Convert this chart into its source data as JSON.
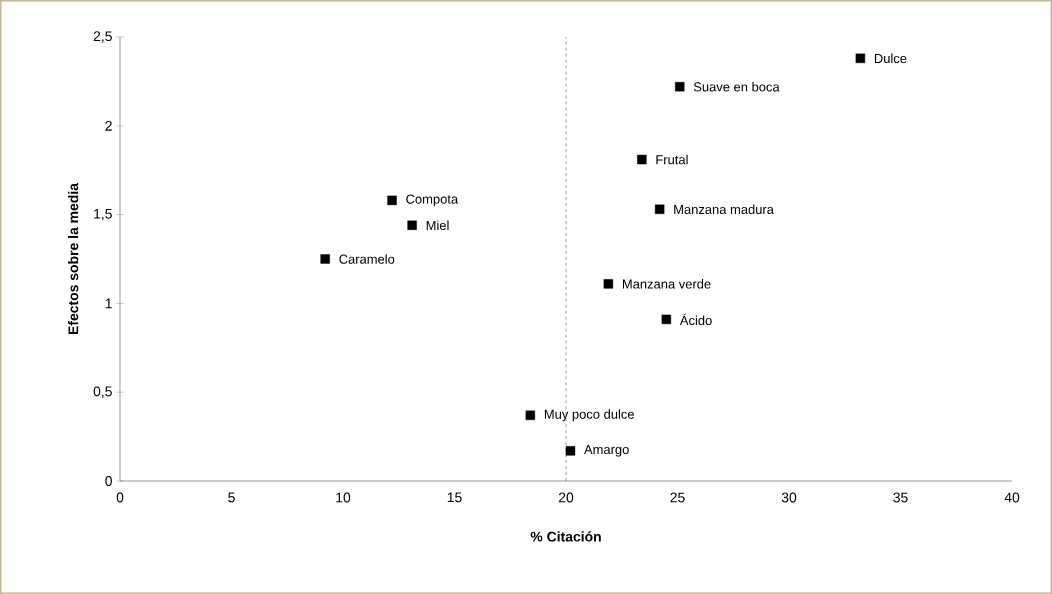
{
  "chart_data": {
    "type": "scatter",
    "xlabel": "% Citación",
    "ylabel": "Efectos sobre la media",
    "x": [
      33.2,
      25.1,
      23.4,
      24.2,
      12.2,
      13.1,
      9.2,
      21.9,
      24.5,
      18.4,
      20.2
    ],
    "values": [
      2.38,
      2.22,
      1.81,
      1.53,
      1.58,
      1.44,
      1.25,
      1.11,
      0.91,
      0.37,
      0.17
    ],
    "color": "#000000",
    "marker": "square",
    "annotations": [
      {
        "text": "Dulce",
        "x": 33.2,
        "y": 2.38
      },
      {
        "text": "Suave en boca",
        "x": 25.1,
        "y": 2.22
      },
      {
        "text": "Frutal",
        "x": 23.4,
        "y": 1.81
      },
      {
        "text": "Manzana madura",
        "x": 24.2,
        "y": 1.53
      },
      {
        "text": "Compota",
        "x": 12.2,
        "y": 1.58
      },
      {
        "text": "Miel",
        "x": 13.1,
        "y": 1.44
      },
      {
        "text": "Caramelo",
        "x": 9.2,
        "y": 1.25
      },
      {
        "text": "Manzana verde",
        "x": 21.9,
        "y": 1.11
      },
      {
        "text": "Ácido",
        "x": 24.5,
        "y": 0.91
      },
      {
        "text": "Muy poco dulce",
        "x": 18.4,
        "y": 0.37
      },
      {
        "text": "Amargo",
        "x": 20.2,
        "y": 0.17
      }
    ],
    "ref_lines": [
      {
        "axis": "x",
        "value": 20,
        "line_style": "dashed"
      }
    ],
    "xlim": [
      0,
      40
    ],
    "xticks": [
      0,
      5,
      10,
      15,
      20,
      25,
      30,
      35,
      40
    ],
    "ylim": [
      0,
      2.5
    ],
    "yticks": [
      0,
      {
        "value": 0.5,
        "label": "0,5"
      },
      1,
      {
        "value": 1.5,
        "label": "1,5"
      },
      2,
      {
        "value": 2.5,
        "label": "2,5"
      }
    ]
  }
}
